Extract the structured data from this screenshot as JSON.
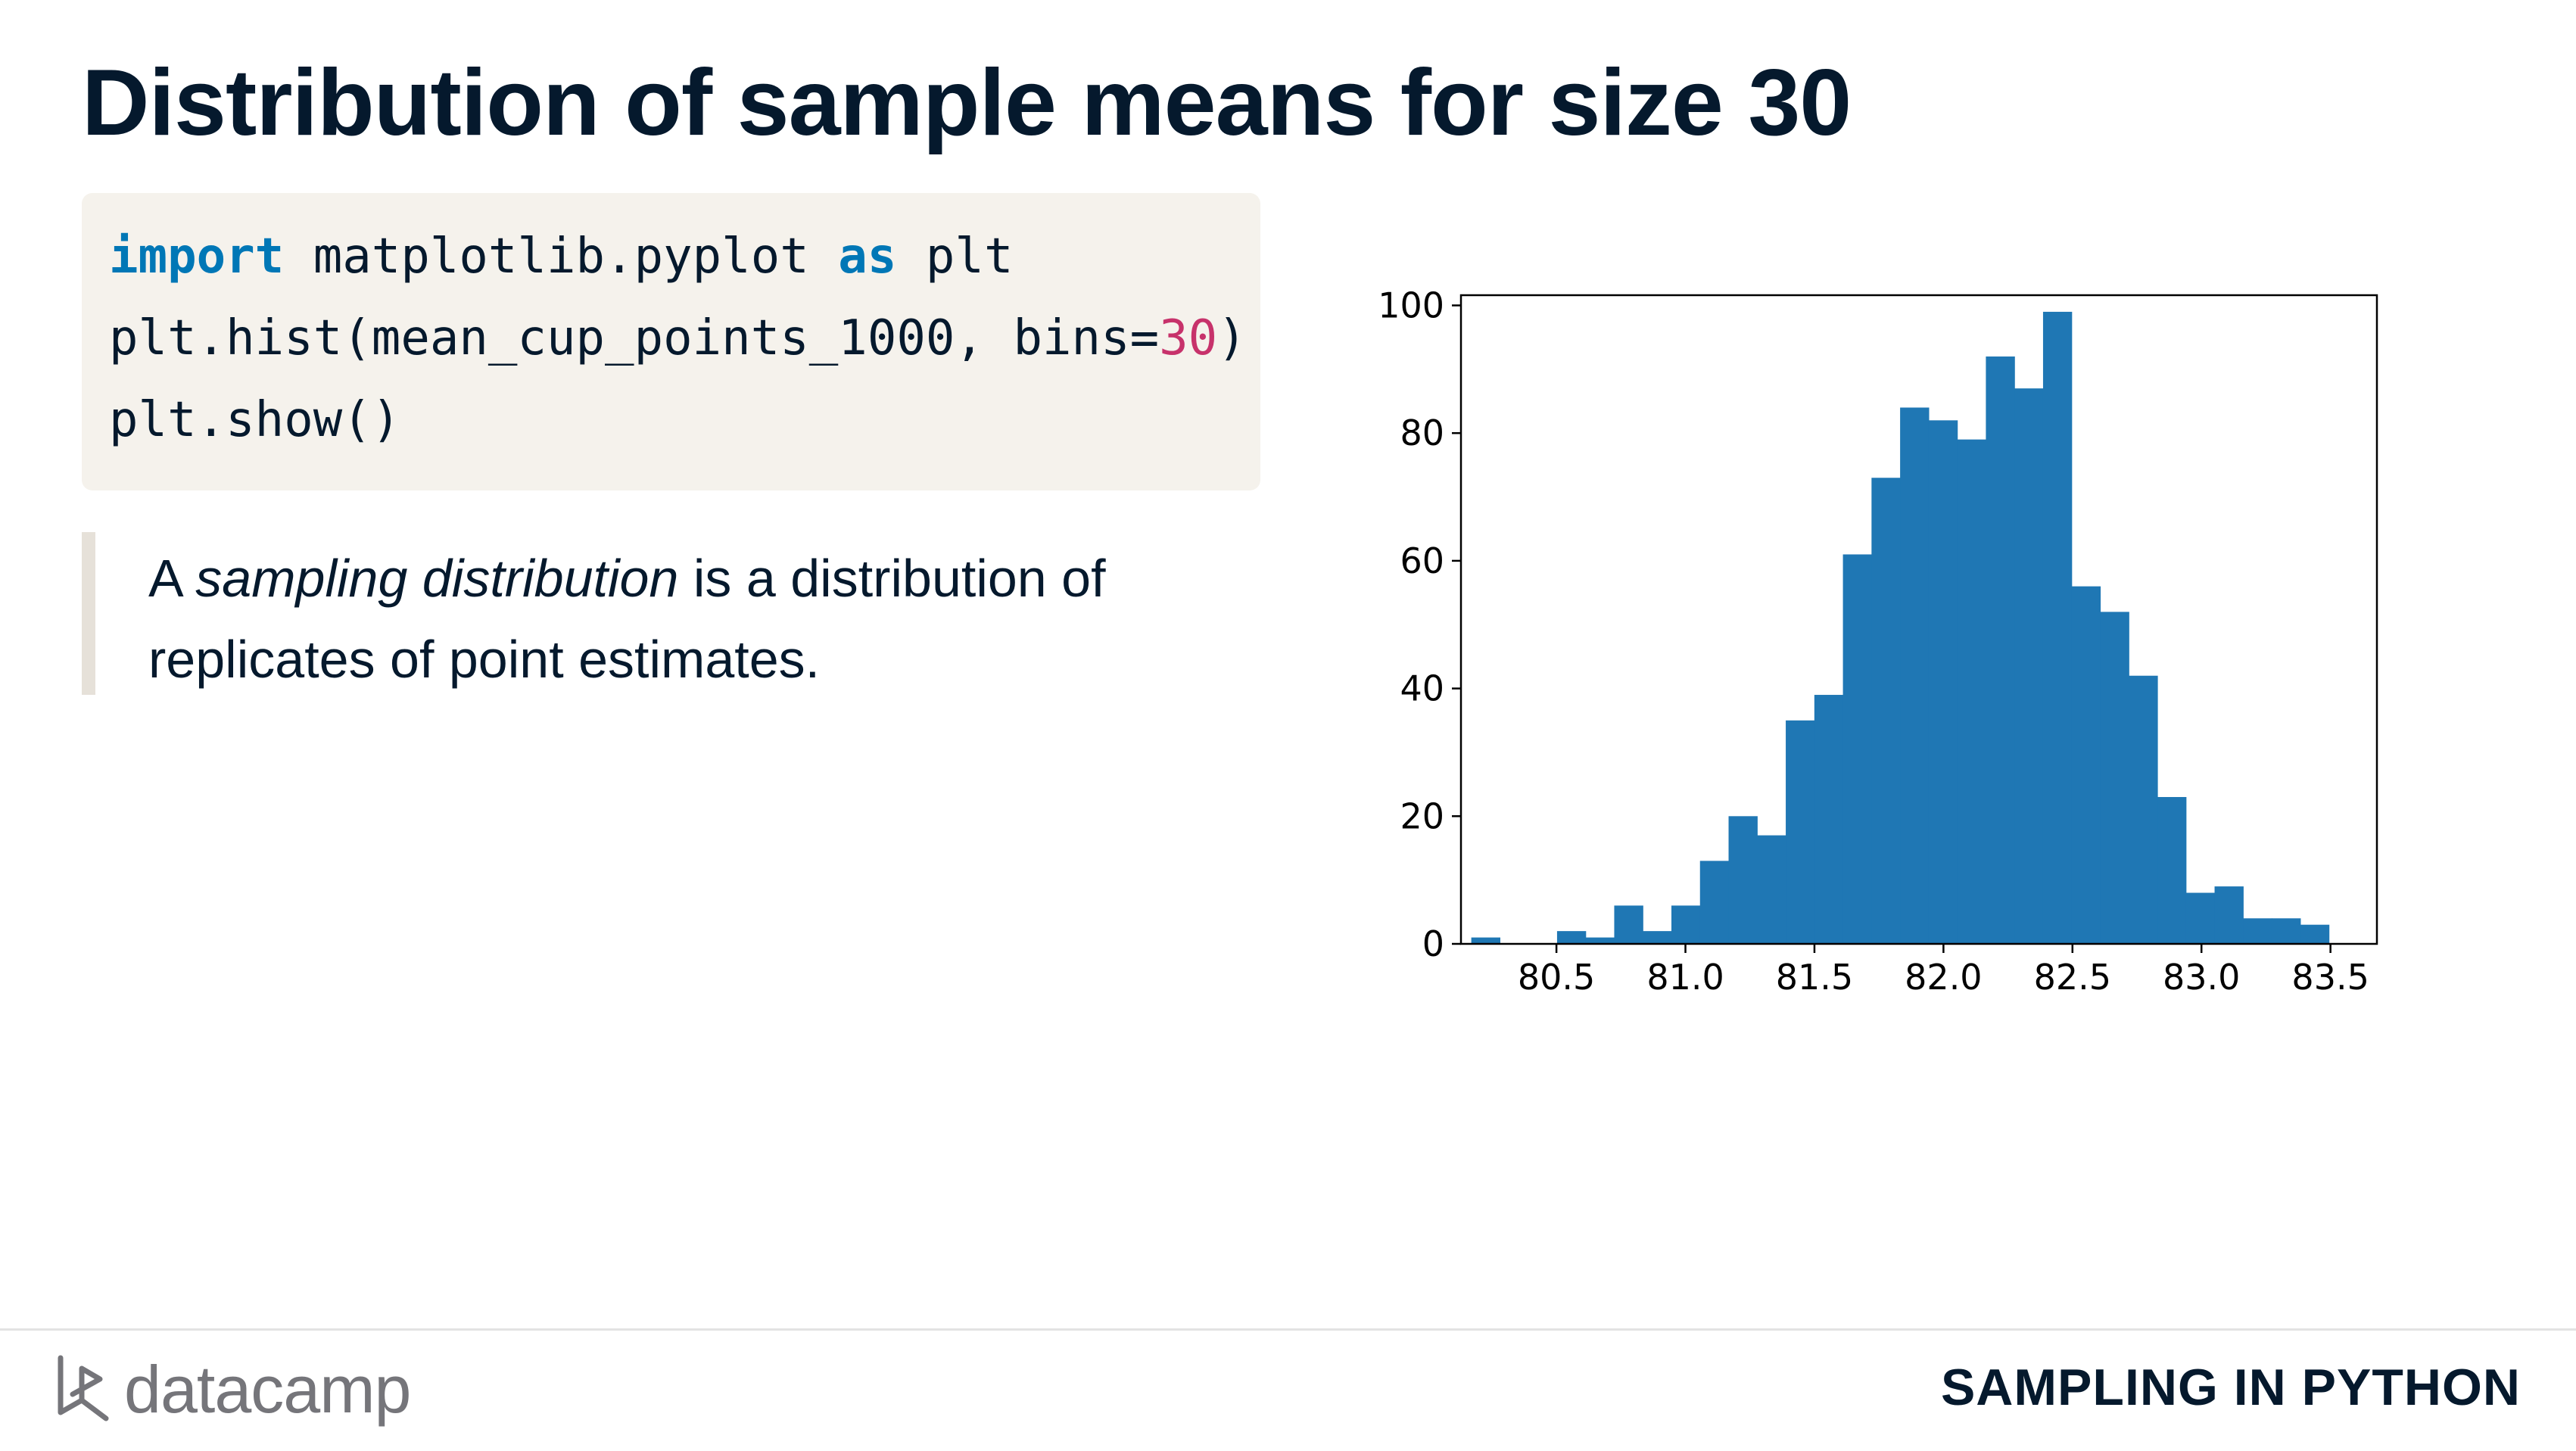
{
  "slide": {
    "title": "Distribution of sample means for size 30"
  },
  "code": {
    "lines": [
      [
        {
          "t": "import",
          "c": "kw"
        },
        {
          "t": " matplotlib.pyplot ",
          "c": ""
        },
        {
          "t": "as",
          "c": "kw"
        },
        {
          "t": " plt",
          "c": ""
        }
      ],
      [
        {
          "t": "plt.hist(mean_cup_points_1000, bins=",
          "c": ""
        },
        {
          "t": "30",
          "c": "num"
        },
        {
          "t": ")",
          "c": ""
        }
      ],
      [
        {
          "t": "plt.show()",
          "c": ""
        }
      ]
    ]
  },
  "quote": {
    "prefix": "A ",
    "emphasis": "sampling distribution",
    "line1_suffix": " is a distribution of",
    "line2": "replicates of point estimates."
  },
  "chart_data": {
    "type": "bar",
    "title": "",
    "xlabel": "",
    "ylabel": "",
    "bar_color": "#1f77b4",
    "xlim": [
      80.13,
      83.68
    ],
    "ylim": [
      0,
      101.6
    ],
    "x_ticks": [
      "80.5",
      "81.0",
      "81.5",
      "82.0",
      "82.5",
      "83.0",
      "83.5"
    ],
    "x_tick_values": [
      80.5,
      81.0,
      81.5,
      82.0,
      82.5,
      83.0,
      83.5
    ],
    "y_ticks": [
      "0",
      "20",
      "40",
      "60",
      "80",
      "100"
    ],
    "y_tick_values": [
      0,
      20,
      40,
      60,
      80,
      100
    ],
    "bin_start": 80.17,
    "bin_width": 0.1108,
    "values": [
      1,
      0,
      0,
      2,
      1,
      6,
      2,
      6,
      13,
      20,
      17,
      35,
      39,
      61,
      73,
      84,
      82,
      79,
      92,
      87,
      99,
      56,
      52,
      42,
      23,
      8,
      9,
      4,
      4,
      3
    ],
    "grid": false,
    "legend": "none"
  },
  "footer": {
    "logo_text": "datacamp",
    "course": "SAMPLING IN PYTHON"
  }
}
